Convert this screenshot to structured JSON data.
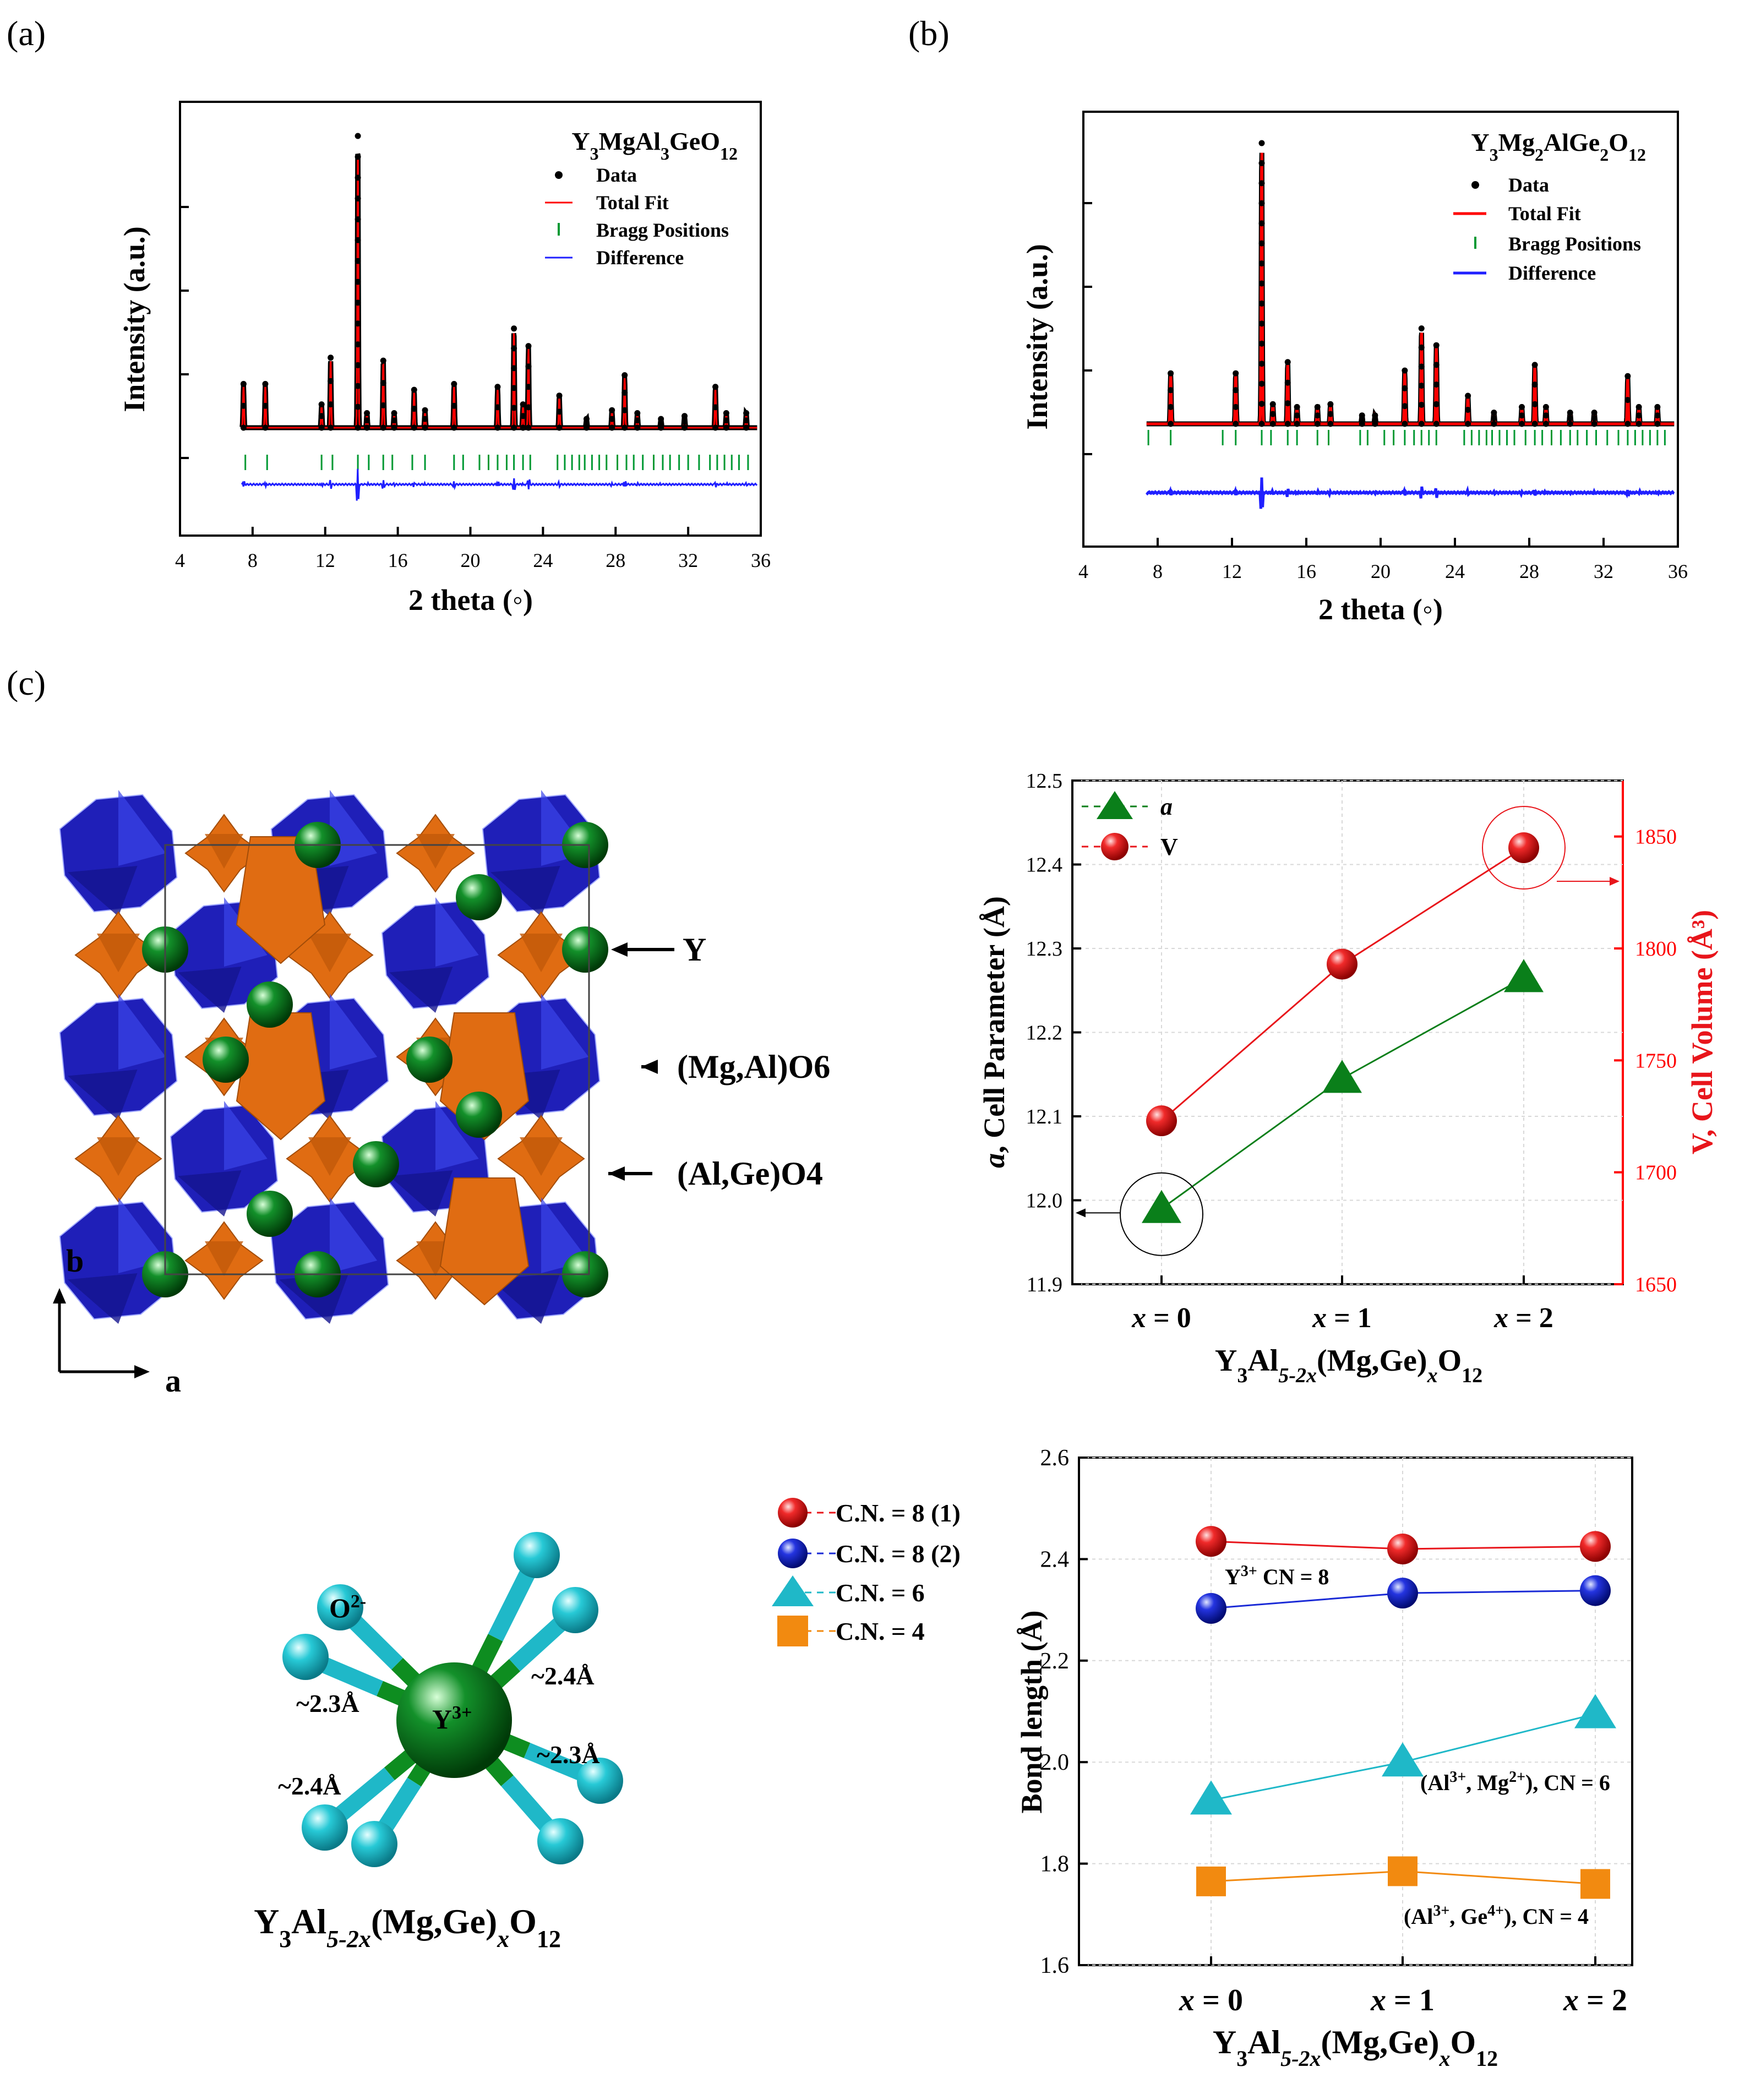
{
  "panel_labels": {
    "a": "(a)",
    "b": "(b)",
    "c": "(c)"
  },
  "colors": {
    "data": "#000000",
    "fit": "#ff0000",
    "bragg": "#009933",
    "diff": "#1f1fff",
    "tri": "#0a7f1a",
    "sphere_red": "#e8151b",
    "sphere_blue": "#1a2ad6",
    "cyan": "#1fb8c8",
    "orange": "#f28a10",
    "oct": "#1f1fb8",
    "tet": "#e06c12",
    "ygreen": "#0a7d1c"
  },
  "xrd_panels": [
    {
      "id": "a",
      "compound": {
        "base": "Y",
        "s1": "3",
        "t1": "MgAl",
        "s2": "3",
        "t2": "GeO",
        "s3": "12"
      },
      "legend": [
        "Data",
        "Total Fit",
        "Bragg Positions",
        "Difference"
      ],
      "xlabel": "2 theta (◦)",
      "ylabel": "Intensity (a.u.)",
      "xlim": [
        4,
        36
      ],
      "xticks": [
        4,
        8,
        12,
        16,
        20,
        24,
        28,
        32,
        36
      ],
      "peaks": [
        [
          7.5,
          0.15
        ],
        [
          8.7,
          0.15
        ],
        [
          11.8,
          0.08
        ],
        [
          12.3,
          0.24
        ],
        [
          13.8,
          1.0
        ],
        [
          14.3,
          0.05
        ],
        [
          15.2,
          0.23
        ],
        [
          15.8,
          0.05
        ],
        [
          16.9,
          0.13
        ],
        [
          17.5,
          0.06
        ],
        [
          19.1,
          0.15
        ],
        [
          21.5,
          0.14
        ],
        [
          22.4,
          0.34
        ],
        [
          22.9,
          0.08
        ],
        [
          23.2,
          0.28
        ],
        [
          24.9,
          0.11
        ],
        [
          26.4,
          0.03
        ],
        [
          27.8,
          0.06
        ],
        [
          28.5,
          0.18
        ],
        [
          29.2,
          0.05
        ],
        [
          30.5,
          0.03
        ],
        [
          31.8,
          0.04
        ],
        [
          33.5,
          0.14
        ],
        [
          34.1,
          0.05
        ],
        [
          35.2,
          0.05
        ]
      ],
      "bragg": [
        7.6,
        8.8,
        11.8,
        12.4,
        13.8,
        14.4,
        15.2,
        15.7,
        16.8,
        17.5,
        19.1,
        19.6,
        20.5,
        21.0,
        21.5,
        22.0,
        22.4,
        22.9,
        23.3,
        24.8,
        25.2,
        25.6,
        26.0,
        26.3,
        26.7,
        27.1,
        27.5,
        28.1,
        28.6,
        29.0,
        29.5,
        30.1,
        30.6,
        31.0,
        31.5,
        32.0,
        32.6,
        33.2,
        33.6,
        34.0,
        34.4,
        34.8,
        35.3
      ]
    },
    {
      "id": "b",
      "compound": {
        "base": "Y",
        "s1": "3",
        "t1": "Mg",
        "s2": "2",
        "t2": "AlGe",
        "s3": "2",
        "t3": "O",
        "s4": "12"
      },
      "legend": [
        "Data",
        "Total Fit",
        "Bragg Positions",
        "Difference"
      ],
      "xlabel": "2 theta (◦)",
      "ylabel": "Intensity (a.u.)",
      "xlim": [
        4,
        36
      ],
      "xticks": [
        4,
        8,
        12,
        16,
        20,
        24,
        28,
        32,
        36
      ],
      "peaks": [
        [
          8.7,
          0.18
        ],
        [
          12.2,
          0.18
        ],
        [
          13.6,
          1.0
        ],
        [
          14.2,
          0.07
        ],
        [
          15.0,
          0.22
        ],
        [
          15.5,
          0.06
        ],
        [
          16.6,
          0.06
        ],
        [
          17.3,
          0.07
        ],
        [
          19.0,
          0.03
        ],
        [
          19.7,
          0.03
        ],
        [
          21.3,
          0.19
        ],
        [
          22.2,
          0.34
        ],
        [
          23.0,
          0.28
        ],
        [
          24.7,
          0.1
        ],
        [
          26.1,
          0.04
        ],
        [
          27.6,
          0.06
        ],
        [
          28.3,
          0.21
        ],
        [
          28.9,
          0.06
        ],
        [
          30.2,
          0.04
        ],
        [
          31.5,
          0.04
        ],
        [
          33.3,
          0.17
        ],
        [
          33.9,
          0.06
        ],
        [
          34.9,
          0.06
        ]
      ],
      "bragg": [
        7.5,
        8.7,
        11.5,
        12.2,
        13.6,
        14.1,
        15.0,
        15.5,
        16.6,
        17.2,
        18.9,
        19.3,
        20.2,
        20.7,
        21.3,
        21.8,
        22.2,
        22.6,
        23.0,
        24.5,
        24.9,
        25.3,
        25.7,
        26.0,
        26.4,
        26.8,
        27.2,
        27.8,
        28.3,
        28.7,
        29.2,
        29.7,
        30.2,
        30.6,
        31.1,
        31.6,
        32.2,
        32.8,
        33.3,
        33.7,
        34.1,
        34.5,
        34.9,
        35.3
      ]
    }
  ],
  "structure": {
    "labels": {
      "y": "Y",
      "mgal": "(Mg,Al)O6",
      "alge": "(Al,Ge)O4"
    },
    "axis_b": "b",
    "axis_a": "a"
  },
  "chart_data": [
    {
      "type": "line",
      "title": "",
      "categories": [
        "x = 0",
        "x = 1",
        "x = 2"
      ],
      "xlabel": {
        "base": "Y",
        "s1": "3",
        "t1": "Al",
        "s2": "5-2x",
        "t2": "(Mg,Ge)",
        "s3": "x",
        "t3": "O",
        "s4": "12"
      },
      "ylabel": {
        "italic": "a",
        "rest": ", Cell Parameter (Å)"
      },
      "y2label": "V, Cell Volume (Å³)",
      "ylim": [
        11.9,
        12.5
      ],
      "yticks": [
        "11.9",
        "12.0",
        "12.1",
        "12.2",
        "12.3",
        "12.4",
        "12.5"
      ],
      "y2lim": [
        1650,
        1875
      ],
      "y2ticks": [
        "1650",
        "1700",
        "1750",
        "1800",
        "1850"
      ],
      "legend": [
        "a",
        "V"
      ],
      "series": [
        {
          "name": "a",
          "axis": "left",
          "marker": "triangle",
          "values": [
            11.99,
            12.145,
            12.265
          ]
        },
        {
          "name": "V",
          "axis": "right",
          "marker": "sphere",
          "values": [
            1723,
            1793,
            1845
          ]
        }
      ]
    },
    {
      "type": "line",
      "title": "",
      "categories": [
        "x = 0",
        "x = 1",
        "x = 2"
      ],
      "xlabel": {
        "base": "Y",
        "s1": "3",
        "t1": "Al",
        "s2": "5-2x",
        "t2": "(Mg,Ge)",
        "s3": "x",
        "t3": "O",
        "s4": "12"
      },
      "ylabel": "Bond length (Å)",
      "ylim": [
        1.6,
        2.6
      ],
      "yticks": [
        "1.6",
        "1.8",
        "2.0",
        "2.2",
        "2.4",
        "2.6"
      ],
      "series": [
        {
          "name": "C.N. = 8 (1)",
          "marker": "sphere-red",
          "values": [
            2.435,
            2.42,
            2.425
          ]
        },
        {
          "name": "C.N. = 8 (2)",
          "marker": "sphere-blue",
          "values": [
            2.303,
            2.333,
            2.338
          ]
        },
        {
          "name": "C.N. = 6",
          "marker": "triangle-cyan",
          "values": [
            1.925,
            2.0,
            2.095
          ]
        },
        {
          "name": "C.N. = 4",
          "marker": "square-orange",
          "values": [
            1.765,
            1.785,
            1.76
          ]
        }
      ],
      "annotations": {
        "y": {
          "a": "Y",
          "b": "3+",
          "c": " CN = 8"
        },
        "cn6": {
          "a": "(Al",
          "b": "3+",
          "c": ", Mg",
          "d": "2+",
          "e": "), CN = 6"
        },
        "cn4": {
          "a": "(Al",
          "b": "3+",
          "c": ", Ge",
          "d": "4+",
          "e": "), CN = 4"
        }
      }
    }
  ],
  "coordination": {
    "o_label": {
      "a": "O",
      "b": "2-"
    },
    "y_label": {
      "a": "Y",
      "b": "3+"
    },
    "distances": [
      "~2.3Å",
      "~2.4Å",
      "~2.4Å",
      "~2.3Å"
    ],
    "formula": {
      "base": "Y",
      "s1": "3",
      "t1": "Al",
      "s2": "5-2x",
      "t2": "(Mg,Ge)",
      "s3": "x",
      "t3": "O",
      "s4": "12"
    }
  }
}
